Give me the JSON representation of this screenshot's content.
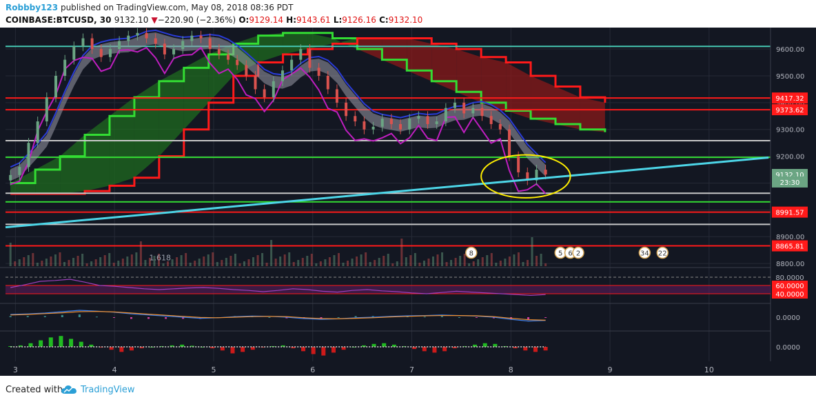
{
  "header": {
    "user": "Robbby123",
    "published_text": "published on TradingView.com, May 08, 2018 08:36 PDT",
    "symbol": "COINBASE:BTCUSD, 30",
    "last": "9132.10",
    "change_arrow": "▼",
    "change": "−220.90 (−2.36%)",
    "o_label": "O:",
    "o_value": "9129.14",
    "h_label": "H:",
    "h_value": "9143.61",
    "l_label": "L:",
    "l_value": "9126.16",
    "c_label": "C:",
    "c_value": "9132.10"
  },
  "footer": {
    "created_with": "Created with",
    "brand": "TradingView",
    "logo_icon": "tradingview-cloud-icon"
  },
  "colors": {
    "background": "#131722",
    "grid": "#262a36",
    "up_candle": "#6ba583",
    "down_candle": "#d9534f",
    "red_line": "#ff1a1a",
    "green_line": "#33dd33",
    "cyan_line": "#4dd6e8",
    "gray_line": "#c8c8c8",
    "teal_line": "#46c9b4",
    "purple_line": "#c01ec0",
    "blue_line": "#2a3cd8",
    "highlight_circle": "#ffee00"
  },
  "chart_data": {
    "type": "line",
    "instrument": "COINBASE:BTCUSD",
    "x_ticks": [
      "3",
      "4",
      "5",
      "6",
      "7",
      "8",
      "9",
      "10"
    ],
    "y_ticks": [
      "9600.00",
      "9500.00",
      "9400.00",
      "9300.00",
      "9200.00",
      "9100.00",
      "9000.00",
      "8900.00",
      "8800.00"
    ],
    "ylim": [
      8790,
      9680
    ],
    "price_labels": [
      {
        "text": "9417.32",
        "value": 9417.32,
        "color": "#ff1a1a"
      },
      {
        "text": "9373.62",
        "value": 9373.62,
        "color": "#ff1a1a"
      },
      {
        "text": "9132.10",
        "value": 9132.1,
        "color": "#6ba583"
      },
      {
        "text": "23:30",
        "value": 9104,
        "color": "#6ba583"
      },
      {
        "text": "8991.57",
        "value": 8991.57,
        "color": "#ff1a1a"
      },
      {
        "text": "8865.81",
        "value": 8865.81,
        "color": "#ff1a1a"
      }
    ],
    "horizontal_levels": [
      {
        "value": 9610,
        "color": "#46c9b4"
      },
      {
        "value": 9417.32,
        "color": "#ff1a1a"
      },
      {
        "value": 9373.62,
        "color": "#ff1a1a"
      },
      {
        "value": 9258,
        "color": "#c8c8c8"
      },
      {
        "value": 9196,
        "color": "#33dd33"
      },
      {
        "value": 9062,
        "color": "#c8c8c8"
      },
      {
        "value": 9030,
        "color": "#33dd33"
      },
      {
        "value": 8991.57,
        "color": "#ff1a1a"
      },
      {
        "value": 8946,
        "color": "#c8c8c8"
      },
      {
        "value": 8865.81,
        "color": "#ff1a1a"
      }
    ],
    "trendline": {
      "from": {
        "x": 2.9,
        "y": 8935
      },
      "to": {
        "x": 10.6,
        "y": 9195
      },
      "color": "#4dd6e8"
    },
    "candles_close": [
      9130,
      9160,
      9250,
      9330,
      9420,
      9500,
      9560,
      9610,
      9640,
      9600,
      9570,
      9600,
      9630,
      9650,
      9660,
      9640,
      9620,
      9580,
      9600,
      9630,
      9650,
      9640,
      9600,
      9580,
      9560,
      9540,
      9500,
      9450,
      9420,
      9480,
      9520,
      9560,
      9600,
      9530,
      9500,
      9450,
      9400,
      9350,
      9330,
      9300,
      9310,
      9340,
      9320,
      9300,
      9340,
      9350,
      9320,
      9330,
      9380,
      9400,
      9360,
      9380,
      9350,
      9320,
      9300,
      9200,
      9140,
      9110,
      9150,
      9132
    ],
    "candle_x_range": [
      2.95,
      8.35
    ],
    "ichimoku_span_a": [
      9100,
      9150,
      9200,
      9280,
      9350,
      9420,
      9480,
      9530,
      9580,
      9620,
      9650,
      9660,
      9660,
      9640,
      9600,
      9560,
      9520,
      9480,
      9440,
      9400,
      9370,
      9340,
      9320,
      9300,
      9290
    ],
    "ichimoku_span_b": [
      9060,
      9060,
      9060,
      9070,
      9090,
      9120,
      9200,
      9300,
      9400,
      9500,
      9550,
      9580,
      9600,
      9620,
      9640,
      9640,
      9640,
      9620,
      9600,
      9570,
      9550,
      9500,
      9460,
      9420,
      9400
    ],
    "ichimoku_x_range": [
      2.95,
      8.95
    ],
    "annotations": [
      {
        "text": "1.618",
        "x": 4.35,
        "y": 8812
      },
      {
        "text": "8",
        "x": 7.6,
        "y": 8840
      },
      {
        "text": "5",
        "x": 8.5,
        "y": 8840
      },
      {
        "text": "6",
        "x": 8.6,
        "y": 8840
      },
      {
        "text": "2",
        "x": 8.68,
        "y": 8840
      },
      {
        "text": "34",
        "x": 9.35,
        "y": 8840
      },
      {
        "text": "22",
        "x": 9.53,
        "y": 8840
      }
    ],
    "highlight_ellipse": {
      "x": 8.15,
      "y": 9125,
      "rx": 0.45,
      "ry": 80
    },
    "rsi": {
      "y_ticks": [
        "80.0000",
        "60.0000",
        "40.0000"
      ],
      "label_colors": [
        "#ffffff",
        "#ff1a1a",
        "#ff1a1a"
      ],
      "ylim": [
        20,
        100
      ],
      "values": [
        55,
        62,
        70,
        72,
        75,
        68,
        60,
        58,
        55,
        52,
        50,
        52,
        54,
        55,
        53,
        50,
        48,
        45,
        48,
        52,
        50,
        46,
        44,
        48,
        50,
        47,
        45,
        42,
        40,
        43,
        46,
        44,
        42,
        40,
        38,
        36,
        38
      ]
    },
    "macd": {
      "y_tick": "0.0000",
      "ylim": [
        -45,
        45
      ],
      "macd_line": [
        10,
        12,
        15,
        20,
        25,
        22,
        18,
        12,
        8,
        4,
        0,
        -4,
        -2,
        2,
        4,
        3,
        0,
        -5,
        -8,
        -6,
        -2,
        0,
        3,
        5,
        6,
        8,
        6,
        4,
        0,
        -8,
        -14,
        -12
      ],
      "signal_line": [
        8,
        10,
        13,
        16,
        20,
        21,
        19,
        15,
        11,
        7,
        3,
        -1,
        -2,
        0,
        2,
        3,
        2,
        -2,
        -5,
        -6,
        -4,
        -2,
        1,
        3,
        5,
        6,
        6,
        5,
        2,
        -4,
        -9,
        -11
      ]
    },
    "osc": {
      "y_tick": "0.0000",
      "ylim": [
        -40,
        40
      ],
      "values": [
        2,
        4,
        10,
        18,
        26,
        30,
        22,
        14,
        6,
        -2,
        -8,
        -14,
        -10,
        -4,
        0,
        2,
        4,
        6,
        3,
        0,
        -4,
        -10,
        -18,
        -14,
        -8,
        -2,
        2,
        4,
        -4,
        -12,
        -20,
        -24,
        -16,
        -8,
        0,
        4,
        8,
        10,
        6,
        2,
        -6,
        -12,
        -16,
        -12,
        -4,
        2,
        6,
        10,
        8,
        2,
        -4,
        -10,
        -14,
        -10
      ]
    }
  }
}
